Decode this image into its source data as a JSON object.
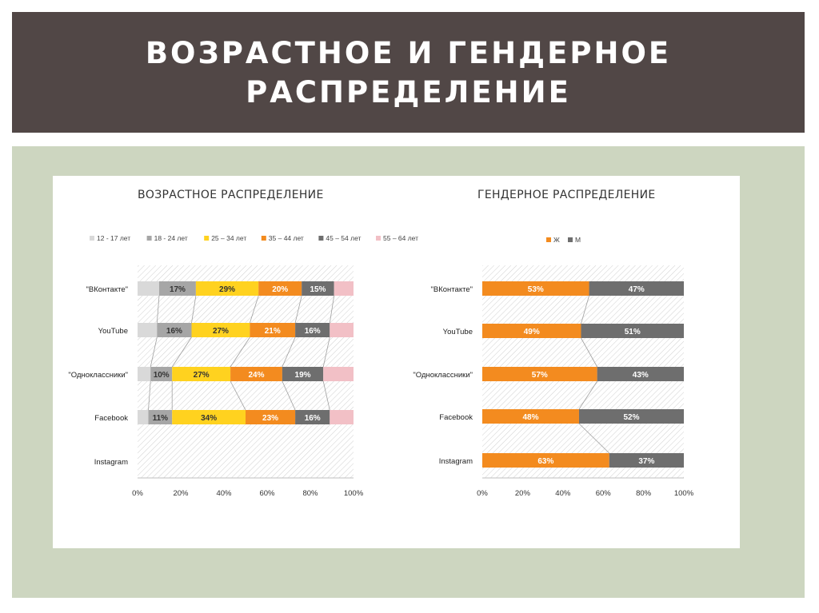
{
  "slide": {
    "title_line1": "ВОЗРАСТНОЕ И ГЕНДЕРНОЕ",
    "title_line2": "РАСПРЕДЕЛЕНИЕ"
  },
  "colors": {
    "header_bg": "#514746",
    "panel_bg": "#cdd6c0",
    "age": [
      "#d9d9d9",
      "#a6a6a6",
      "#ffd21f",
      "#f38b1f",
      "#6e6e6e",
      "#f2c0c6"
    ],
    "gender": [
      "#f38b1f",
      "#6e6e6e"
    ]
  },
  "chart_data": [
    {
      "type": "bar",
      "orientation": "horizontal",
      "stacked": "percent",
      "title": "ВОЗРАСТНОЕ РАСПРЕДЕЛЕНИЕ",
      "categories": [
        "\"ВКонтакте\"",
        "YouTube",
        "\"Одноклассники\"",
        "Facebook",
        "Instagram"
      ],
      "series": [
        {
          "name": "12 - 17 лет",
          "values": [
            10,
            9,
            6,
            5,
            null
          ],
          "labels": [
            "",
            "",
            "",
            "",
            ""
          ]
        },
        {
          "name": "18 - 24 лет",
          "values": [
            17,
            16,
            10,
            11,
            null
          ],
          "labels": [
            "17%",
            "16%",
            "10%",
            "11%",
            ""
          ]
        },
        {
          "name": "25 – 34 лет",
          "values": [
            29,
            27,
            27,
            34,
            null
          ],
          "labels": [
            "29%",
            "27%",
            "27%",
            "34%",
            ""
          ]
        },
        {
          "name": "35 – 44 лет",
          "values": [
            20,
            21,
            24,
            23,
            null
          ],
          "labels": [
            "20%",
            "21%",
            "24%",
            "23%",
            ""
          ]
        },
        {
          "name": "45 – 54 лет",
          "values": [
            15,
            16,
            19,
            16,
            null
          ],
          "labels": [
            "15%",
            "16%",
            "19%",
            "16%",
            ""
          ]
        },
        {
          "name": "55 – 64 лет",
          "values": [
            9,
            11,
            14,
            11,
            null
          ],
          "labels": [
            "",
            "",
            "",
            "",
            ""
          ]
        }
      ],
      "x_ticks": [
        "0%",
        "20%",
        "40%",
        "60%",
        "80%",
        "100%"
      ],
      "xlim": [
        0,
        100
      ],
      "legend": "top"
    },
    {
      "type": "bar",
      "orientation": "horizontal",
      "stacked": "percent",
      "title": "ГЕНДЕРНОЕ РАСПРЕДЕЛЕНИЕ",
      "categories": [
        "\"ВКонтакте\"",
        "YouTube",
        "\"Одноклассники\"",
        "Facebook",
        "Instagram"
      ],
      "series": [
        {
          "name": "Ж",
          "values": [
            53,
            49,
            57,
            48,
            63
          ],
          "labels": [
            "53%",
            "49%",
            "57%",
            "48%",
            "63%"
          ]
        },
        {
          "name": "М",
          "values": [
            47,
            51,
            43,
            52,
            37
          ],
          "labels": [
            "47%",
            "51%",
            "43%",
            "52%",
            "37%"
          ]
        }
      ],
      "x_ticks": [
        "0%",
        "20%",
        "40%",
        "60%",
        "80%",
        "100%"
      ],
      "xlim": [
        0,
        100
      ],
      "legend": "top"
    }
  ]
}
